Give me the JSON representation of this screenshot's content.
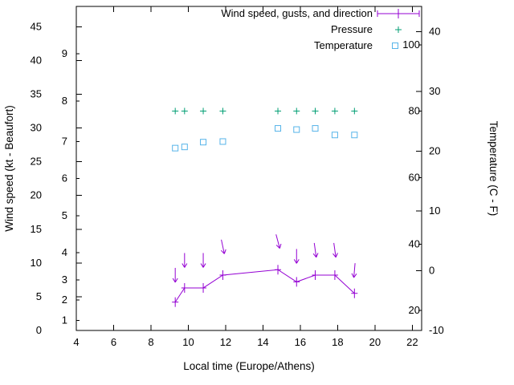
{
  "colors": {
    "background": "#ffffff",
    "axis": "#000000",
    "wind": "#9400d3",
    "pressure": "#009e73",
    "temperature": "#56b4e9"
  },
  "chart_data": {
    "type": "line",
    "title": "",
    "xlabel": "Local time (Europe/Athens)",
    "ylabel_left": "Wind speed (kt - Beaufort)",
    "ylabel_right": "Temperature (C - F)",
    "legend_position": "top-right-inside",
    "grid": false,
    "x_range": [
      4,
      22.5
    ],
    "x_ticks": [
      4,
      6,
      8,
      10,
      12,
      14,
      16,
      18,
      20,
      22
    ],
    "y_left": {
      "range_kt": [
        0,
        48
      ],
      "ticks_kt": [
        0,
        5,
        10,
        15,
        20,
        25,
        30,
        35,
        40,
        45
      ],
      "beaufort": [
        {
          "bft": 1,
          "kt": 1.5
        },
        {
          "bft": 2,
          "kt": 4.5
        },
        {
          "bft": 3,
          "kt": 7.5
        },
        {
          "bft": 4,
          "kt": 11.5
        },
        {
          "bft": 5,
          "kt": 17
        },
        {
          "bft": 6,
          "kt": 22.5
        },
        {
          "bft": 7,
          "kt": 28
        },
        {
          "bft": 8,
          "kt": 34
        },
        {
          "bft": 9,
          "kt": 41
        }
      ]
    },
    "y_right": {
      "range_c": [
        -10,
        44.2
      ],
      "ticks_c": [
        -10,
        0,
        10,
        20,
        30,
        40
      ],
      "ticks_f": [
        20,
        40,
        60,
        80,
        100
      ]
    },
    "x": [
      9.3,
      9.8,
      10.8,
      11.85,
      14.8,
      15.8,
      16.8,
      17.85,
      18.9
    ],
    "series": [
      {
        "name": "Wind speed, gusts, and direction",
        "color": "#9400d3",
        "style": "line-plus-errorbar-with-direction-arrows",
        "speed_kt": [
          4.2,
          6.3,
          6.3,
          8.2,
          9.0,
          7.2,
          8.2,
          8.2,
          5.5
        ],
        "gust_kt": [
          8.2,
          10.4,
          10.4,
          12.4,
          13.2,
          11.0,
          11.9,
          11.9,
          8.9
        ],
        "direction_tilt_deg": [
          0,
          0,
          0,
          -12,
          -15,
          0,
          -8,
          -8,
          5
        ]
      },
      {
        "name": "Pressure",
        "color": "#009e73",
        "style": "points-plus",
        "y_kt": [
          32.5,
          32.5,
          32.5,
          32.5,
          32.5,
          32.5,
          32.5,
          32.5,
          32.5
        ]
      },
      {
        "name": "Temperature",
        "color": "#56b4e9",
        "style": "points-open-square",
        "temp_c": [
          20.5,
          20.7,
          21.5,
          21.6,
          23.8,
          23.6,
          23.8,
          22.7,
          22.7
        ]
      }
    ]
  }
}
